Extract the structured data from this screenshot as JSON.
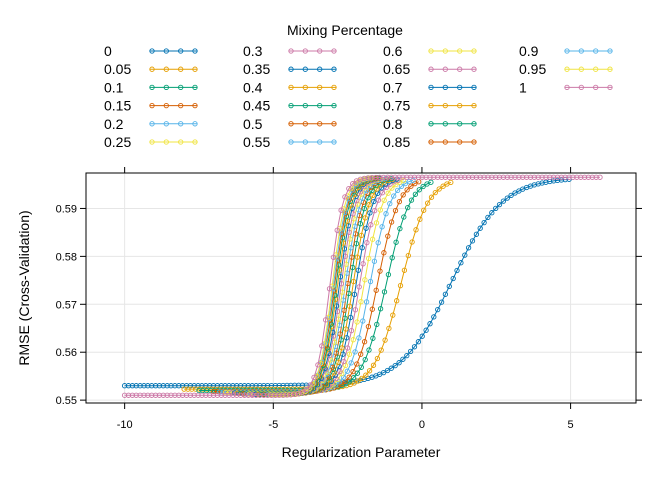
{
  "chart_data": {
    "type": "line",
    "title": "",
    "xlabel": "Regularization Parameter",
    "ylabel": "RMSE (Cross-Validation)",
    "xlim": [
      -11.3,
      7.2
    ],
    "ylim": [
      0.5494,
      0.5974
    ],
    "xticks": [
      -10,
      -5,
      0,
      5
    ],
    "xtick_labels": [
      "-10",
      "-5",
      "0",
      "5"
    ],
    "yticks": [
      0.55,
      0.56,
      0.57,
      0.58,
      0.59
    ],
    "ytick_labels": [
      "0.55",
      "0.56",
      "0.57",
      "0.58",
      "0.59"
    ],
    "grid": true,
    "legend": {
      "title": "Mixing Percentage",
      "placement": "top",
      "columns": 4,
      "rows_per_column": 6
    },
    "series_model": "Each series is the lasso/elastic-net cross-validated RMSE versus log(lambda), sampled on a regular grid of log(lambda) from x_start to x_end; RMSE equals y_low below the transition, then rises along a logistic curve with midpoint x_mid and scale x_scale, saturating at 0.5965.",
    "y_high": 0.5965,
    "series": [
      {
        "name": "0",
        "color": "#0072b2",
        "x_start": -10.0,
        "x_end": 5.0,
        "y_low": 0.553,
        "x_mid": 1.0,
        "x_scale": 0.85
      },
      {
        "name": "0.05",
        "color": "#e69f00",
        "x_start": -8.0,
        "x_end": 1.0,
        "y_low": 0.5523,
        "x_mid": -0.7,
        "x_scale": 0.45
      },
      {
        "name": "0.1",
        "color": "#009e73",
        "x_start": -7.5,
        "x_end": 0.3,
        "y_low": 0.552,
        "x_mid": -1.2,
        "x_scale": 0.4
      },
      {
        "name": "0.15",
        "color": "#d55e00",
        "x_start": -7.0,
        "x_end": 0.0,
        "y_low": 0.5518,
        "x_mid": -1.5,
        "x_scale": 0.36
      },
      {
        "name": "0.2",
        "color": "#56b4e9",
        "x_start": -6.8,
        "x_end": -0.3,
        "y_low": 0.5517,
        "x_mid": -1.75,
        "x_scale": 0.34
      },
      {
        "name": "0.25",
        "color": "#f0e442",
        "x_start": -6.6,
        "x_end": -0.5,
        "y_low": 0.5516,
        "x_mid": -1.95,
        "x_scale": 0.32
      },
      {
        "name": "0.3",
        "color": "#cc79a7",
        "x_start": -6.4,
        "x_end": -0.7,
        "y_low": 0.5515,
        "x_mid": -2.1,
        "x_scale": 0.3
      },
      {
        "name": "0.35",
        "color": "#0072b2",
        "x_start": -6.3,
        "x_end": -0.8,
        "y_low": 0.5515,
        "x_mid": -2.22,
        "x_scale": 0.29
      },
      {
        "name": "0.4",
        "color": "#e69f00",
        "x_start": -6.2,
        "x_end": -0.9,
        "y_low": 0.5514,
        "x_mid": -2.32,
        "x_scale": 0.28
      },
      {
        "name": "0.45",
        "color": "#009e73",
        "x_start": -6.1,
        "x_end": -1.0,
        "y_low": 0.5514,
        "x_mid": -2.42,
        "x_scale": 0.27
      },
      {
        "name": "0.5",
        "color": "#d55e00",
        "x_start": -6.0,
        "x_end": -1.1,
        "y_low": 0.5513,
        "x_mid": -2.5,
        "x_scale": 0.26
      },
      {
        "name": "0.55",
        "color": "#56b4e9",
        "x_start": -5.9,
        "x_end": -1.2,
        "y_low": 0.5513,
        "x_mid": -2.58,
        "x_scale": 0.26
      },
      {
        "name": "0.6",
        "color": "#f0e442",
        "x_start": -5.8,
        "x_end": -1.3,
        "y_low": 0.5513,
        "x_mid": -2.65,
        "x_scale": 0.25
      },
      {
        "name": "0.65",
        "color": "#cc79a7",
        "x_start": -5.7,
        "x_end": -1.3,
        "y_low": 0.5512,
        "x_mid": -2.72,
        "x_scale": 0.25
      },
      {
        "name": "0.7",
        "color": "#0072b2",
        "x_start": -5.6,
        "x_end": -1.4,
        "y_low": 0.5512,
        "x_mid": -2.78,
        "x_scale": 0.24
      },
      {
        "name": "0.75",
        "color": "#e69f00",
        "x_start": -5.5,
        "x_end": -1.4,
        "y_low": 0.5512,
        "x_mid": -2.84,
        "x_scale": 0.24
      },
      {
        "name": "0.8",
        "color": "#009e73",
        "x_start": -5.4,
        "x_end": -1.5,
        "y_low": 0.5512,
        "x_mid": -2.89,
        "x_scale": 0.23
      },
      {
        "name": "0.85",
        "color": "#d55e00",
        "x_start": -5.3,
        "x_end": -1.5,
        "y_low": 0.5511,
        "x_mid": -2.94,
        "x_scale": 0.23
      },
      {
        "name": "0.9",
        "color": "#56b4e9",
        "x_start": -5.2,
        "x_end": -1.6,
        "y_low": 0.5511,
        "x_mid": -2.98,
        "x_scale": 0.23
      },
      {
        "name": "0.95",
        "color": "#f0e442",
        "x_start": -5.1,
        "x_end": -1.6,
        "y_low": 0.5511,
        "x_mid": -3.02,
        "x_scale": 0.22
      },
      {
        "name": "1",
        "color": "#cc79a7",
        "x_start": -10.0,
        "x_end": 6.0,
        "y_low": 0.551,
        "x_mid": -3.1,
        "x_scale": 0.22
      }
    ]
  }
}
